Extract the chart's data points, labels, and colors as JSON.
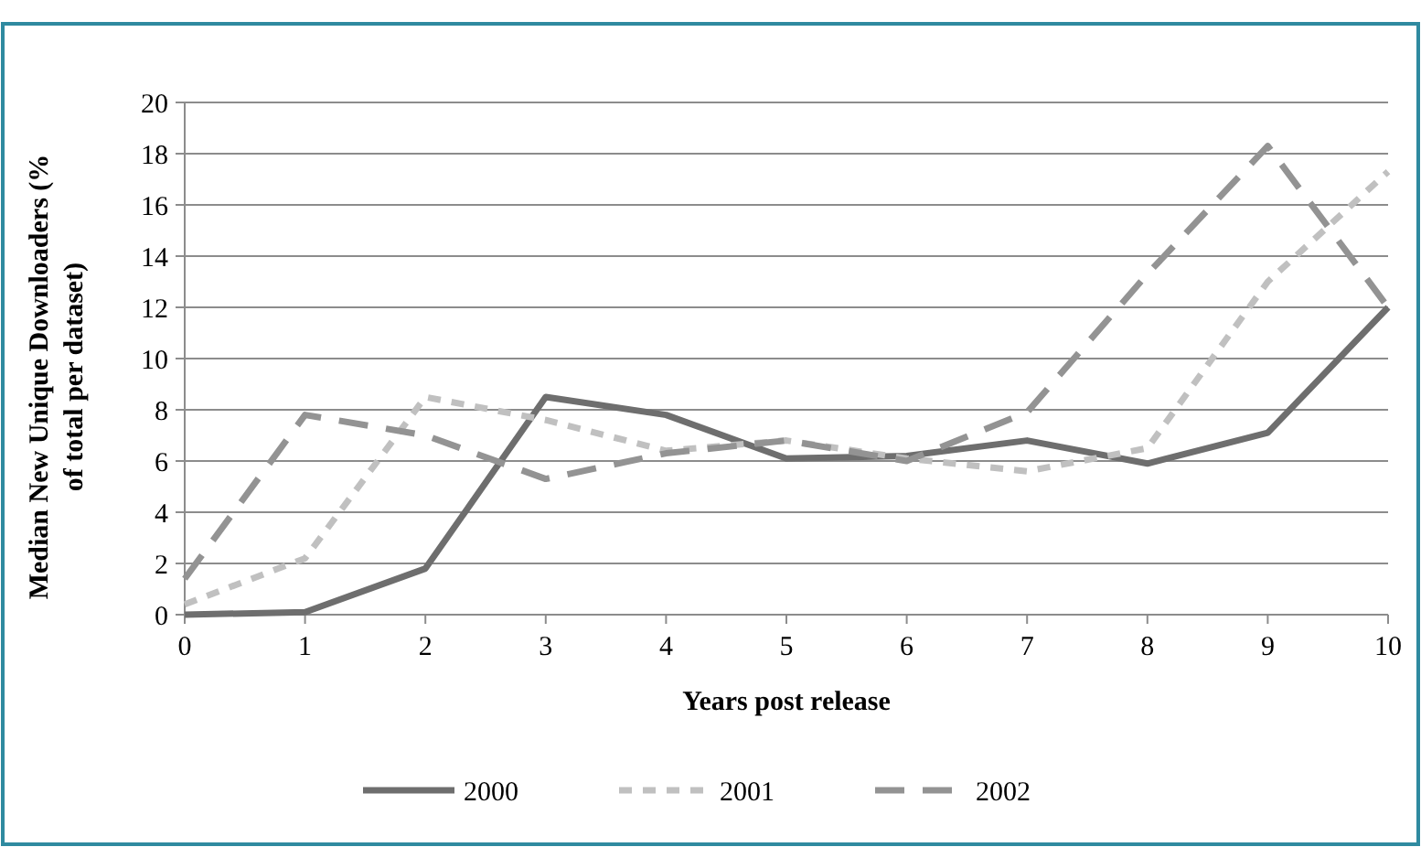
{
  "chart_data": {
    "type": "line",
    "xlabel": "Years post release",
    "ylabel": "Median New Unique Downloaders (% of total per dataset)",
    "x": [
      0,
      1,
      2,
      3,
      4,
      5,
      6,
      7,
      8,
      9,
      10
    ],
    "xlim": [
      0,
      10
    ],
    "xticks": [
      0,
      1,
      2,
      3,
      4,
      5,
      6,
      7,
      8,
      9,
      10
    ],
    "ylim": [
      0,
      20
    ],
    "yticks": [
      0,
      2,
      4,
      6,
      8,
      10,
      12,
      14,
      16,
      18,
      20
    ],
    "grid": "y",
    "legend": "bottom",
    "marker": "none",
    "series": [
      {
        "name": "2000",
        "color": "#6e6e6e",
        "line_style": "solid",
        "values": [
          0,
          0.1,
          1.8,
          8.5,
          7.8,
          6.1,
          6.2,
          6.8,
          5.9,
          7.1,
          12
        ]
      },
      {
        "name": "2001",
        "color": "#c0c0c0",
        "line_style": "dashed",
        "values": [
          0.4,
          2.2,
          8.5,
          7.6,
          6.4,
          6.8,
          6.1,
          5.6,
          6.5,
          13,
          17.3
        ]
      },
      {
        "name": "2002",
        "color": "#939393",
        "line_style": "dashed",
        "values": [
          1.4,
          7.8,
          7.0,
          5.3,
          6.3,
          6.8,
          6.0,
          7.9,
          13.3,
          18.3,
          12.0
        ]
      }
    ]
  }
}
